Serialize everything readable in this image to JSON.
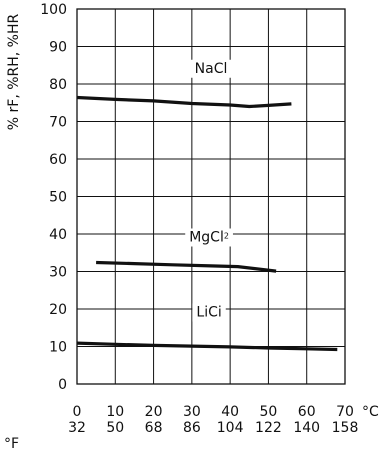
{
  "chart_data": {
    "type": "line",
    "title": "",
    "ylabel": "% rF, %RH, %HR",
    "xlabel_c": "°C",
    "xlabel_f": "°F",
    "xlim": [
      0,
      70
    ],
    "ylim": [
      0,
      100
    ],
    "grid": true,
    "x_ticks_c": [
      "0",
      "10",
      "20",
      "30",
      "40",
      "50",
      "60",
      "70"
    ],
    "x_ticks_f": [
      "32",
      "50",
      "68",
      "86",
      "104",
      "122",
      "140",
      "158"
    ],
    "y_ticks": [
      "0",
      "10",
      "20",
      "30",
      "40",
      "50",
      "60",
      "70",
      "80",
      "90",
      "100"
    ],
    "series": [
      {
        "name": "NaCl",
        "label_main": "NaCl",
        "label_sub": "",
        "label_at": [
          35,
          83
        ],
        "points": [
          [
            0,
            76.4
          ],
          [
            10,
            75.9
          ],
          [
            20,
            75.5
          ],
          [
            30,
            74.8
          ],
          [
            40,
            74.4
          ],
          [
            45,
            74.0
          ],
          [
            50,
            74.3
          ],
          [
            56,
            74.7
          ]
        ]
      },
      {
        "name": "MgCl2",
        "label_main": "MgCl",
        "label_sub": "2",
        "label_at": [
          34.5,
          38
        ],
        "points": [
          [
            5,
            32.4
          ],
          [
            15,
            32.1
          ],
          [
            25,
            31.8
          ],
          [
            35,
            31.5
          ],
          [
            42,
            31.3
          ],
          [
            52,
            30.1
          ]
        ]
      },
      {
        "name": "LiCi",
        "label_main": "LiCi",
        "label_sub": "",
        "label_at": [
          34.5,
          18
        ],
        "points": [
          [
            0,
            10.9
          ],
          [
            10,
            10.6
          ],
          [
            20,
            10.3
          ],
          [
            30,
            10.1
          ],
          [
            40,
            9.9
          ],
          [
            50,
            9.6
          ],
          [
            60,
            9.4
          ],
          [
            68,
            9.2
          ]
        ]
      }
    ]
  }
}
